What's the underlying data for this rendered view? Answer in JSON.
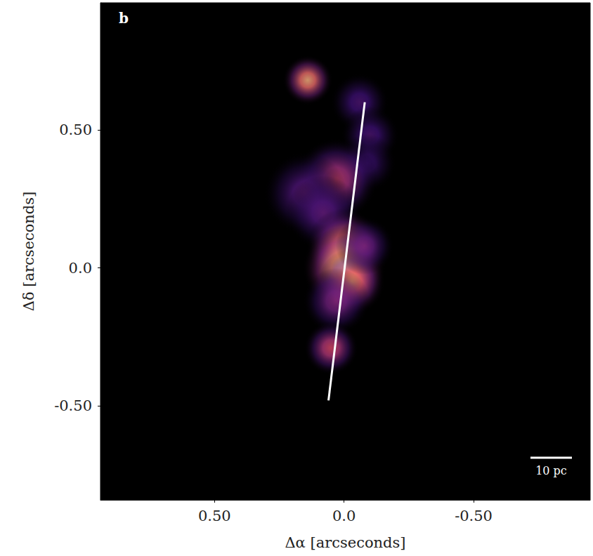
{
  "chart_data": {
    "type": "scatter",
    "panel": "b",
    "xlabel": "Δα [arcseconds]",
    "ylabel": "Δδ [arcseconds]",
    "xlim": [
      0.94,
      -0.95
    ],
    "ylim": [
      -0.84,
      0.96
    ],
    "xticks": [
      {
        "value": 0.5,
        "label": "0.50"
      },
      {
        "value": 0,
        "label": "0.0"
      },
      {
        "value": -0.5,
        "label": "-0.50"
      }
    ],
    "yticks": [
      {
        "value": 0.5,
        "label": "0.50"
      },
      {
        "value": 0,
        "label": "0.0"
      },
      {
        "value": -0.5,
        "label": "-0.50"
      }
    ],
    "grid": false,
    "knots": {
      "x": [
        0.14,
        -0.06,
        -0.1,
        -0.09,
        0.03,
        0.15,
        0.08,
        0.0,
        0.0,
        -0.03,
        0.03,
        0.05,
        -0.08
      ],
      "y": [
        0.68,
        0.6,
        0.48,
        0.38,
        0.32,
        0.27,
        0.2,
        0.08,
        0.0,
        -0.05,
        -0.12,
        -0.29,
        0.08
      ],
      "size": [
        0.12,
        0.14,
        0.14,
        0.14,
        0.2,
        0.2,
        0.18,
        0.18,
        0.2,
        0.16,
        0.16,
        0.13,
        0.14
      ],
      "intensity": [
        0.85,
        0.25,
        0.25,
        0.2,
        0.55,
        0.3,
        0.3,
        0.85,
        1.0,
        0.8,
        0.4,
        0.6,
        0.35
      ]
    },
    "line": {
      "x": [
        -0.08,
        0.06
      ],
      "y": [
        0.6,
        -0.48
      ],
      "color": "#ffffff"
    },
    "scale_bar": {
      "label": "10 pc",
      "length": 0.16
    }
  }
}
